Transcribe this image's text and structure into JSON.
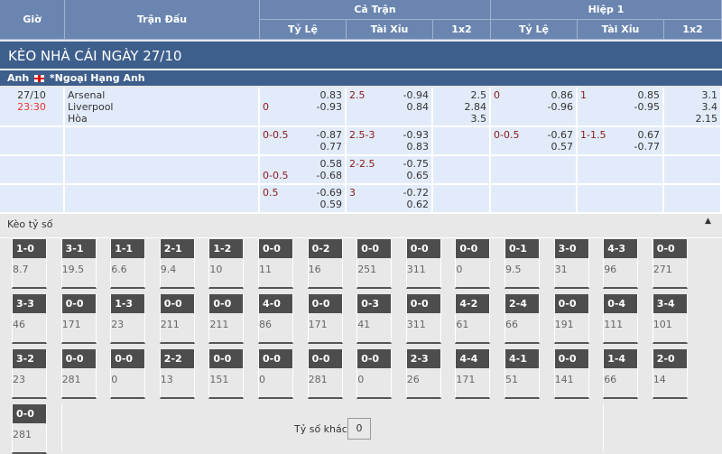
{
  "header": {
    "gio": "Giờ",
    "tran_dau": "Trận Đấu",
    "ca_tran": "Cả Trận",
    "hiep1": "Hiệp 1",
    "ty_le": "Tỷ Lệ",
    "tai_xiu": "Tài Xỉu",
    "x12": "1x2"
  },
  "title": "KÈO NHÀ CÁI NGÀY 27/10",
  "league": {
    "country": "Anh",
    "name": "*Ngoại Hạng Anh",
    "flag_icon": "england-flag-icon"
  },
  "match": {
    "date": "27/10",
    "time": "23:30",
    "home": "Arsenal",
    "away": "Liverpool",
    "draw": "Hòa"
  },
  "rows": [
    {
      "ft_hdp_home": "",
      "ft_hdp_away": "0",
      "ft_hdp_o1": "0.83",
      "ft_hdp_o2": "-0.93",
      "ft_ou_line": "2.5",
      "ft_ou_o1": "-0.94",
      "ft_ou_o2": "0.84",
      "ft_1x2": [
        "2.5",
        "2.84",
        "3.5"
      ],
      "h1_hdp_line": "0",
      "h1_hdp_o1": "0.86",
      "h1_hdp_o2": "-0.96",
      "h1_ou_line": "1",
      "h1_ou_o1": "0.85",
      "h1_ou_o2": "-0.95",
      "h1_1x2": [
        "3.1",
        "3.4",
        "2.15"
      ]
    },
    {
      "ft_hdp_home": "0-0.5",
      "ft_hdp_away": "",
      "ft_hdp_o1": "-0.87",
      "ft_hdp_o2": "0.77",
      "ft_ou_line": "2.5-3",
      "ft_ou_o1": "-0.93",
      "ft_ou_o2": "0.83",
      "h1_hdp_line": "0-0.5",
      "h1_hdp_o1": "-0.67",
      "h1_hdp_o2": "0.57",
      "h1_ou_line": "1-1.5",
      "h1_ou_o1": "0.67",
      "h1_ou_o2": "-0.77"
    },
    {
      "ft_hdp_home": "",
      "ft_hdp_away": "0-0.5",
      "ft_hdp_o1": "0.58",
      "ft_hdp_o2": "-0.68",
      "ft_ou_line": "2-2.5",
      "ft_ou_o1": "-0.75",
      "ft_ou_o2": "0.65"
    },
    {
      "ft_hdp_home": "0.5",
      "ft_hdp_away": "",
      "ft_hdp_o1": "-0.69",
      "ft_hdp_o2": "0.59",
      "ft_ou_line": "3",
      "ft_ou_o1": "-0.72",
      "ft_ou_o2": "0.62"
    }
  ],
  "correct_score": {
    "title": "Kèo tỷ số",
    "other_label": "Tỷ số khác",
    "other_value": "0",
    "items": [
      [
        "1-0",
        "8.7"
      ],
      [
        "3-1",
        "19.5"
      ],
      [
        "1-1",
        "6.6"
      ],
      [
        "2-1",
        "9.4"
      ],
      [
        "1-2",
        "10"
      ],
      [
        "0-0",
        "11"
      ],
      [
        "0-2",
        "16"
      ],
      [
        "0-0",
        "251"
      ],
      [
        "0-0",
        "311"
      ],
      [
        "0-0",
        "0"
      ],
      [
        "0-1",
        "9.5"
      ],
      [
        "3-0",
        "31"
      ],
      [
        "4-3",
        "96"
      ],
      [
        "0-0",
        "271"
      ],
      [
        "3-3",
        "46"
      ],
      [
        "0-0",
        "171"
      ],
      [
        "1-3",
        "23"
      ],
      [
        "0-0",
        "211"
      ],
      [
        "0-0",
        "211"
      ],
      [
        "4-0",
        "86"
      ],
      [
        "0-0",
        "171"
      ],
      [
        "0-3",
        "41"
      ],
      [
        "0-0",
        "311"
      ],
      [
        "4-2",
        "61"
      ],
      [
        "2-4",
        "66"
      ],
      [
        "0-0",
        "191"
      ],
      [
        "0-4",
        "111"
      ],
      [
        "3-4",
        "101"
      ],
      [
        "3-2",
        "23"
      ],
      [
        "0-0",
        "281"
      ],
      [
        "0-0",
        "0"
      ],
      [
        "2-2",
        "13"
      ],
      [
        "0-0",
        "151"
      ],
      [
        "0-0",
        "0"
      ],
      [
        "0-0",
        "281"
      ],
      [
        "0-0",
        "0"
      ],
      [
        "2-3",
        "26"
      ],
      [
        "4-4",
        "171"
      ],
      [
        "4-1",
        "51"
      ],
      [
        "0-0",
        "141"
      ],
      [
        "1-4",
        "66"
      ],
      [
        "2-0",
        "14"
      ],
      [
        "0-0",
        "281"
      ]
    ]
  }
}
